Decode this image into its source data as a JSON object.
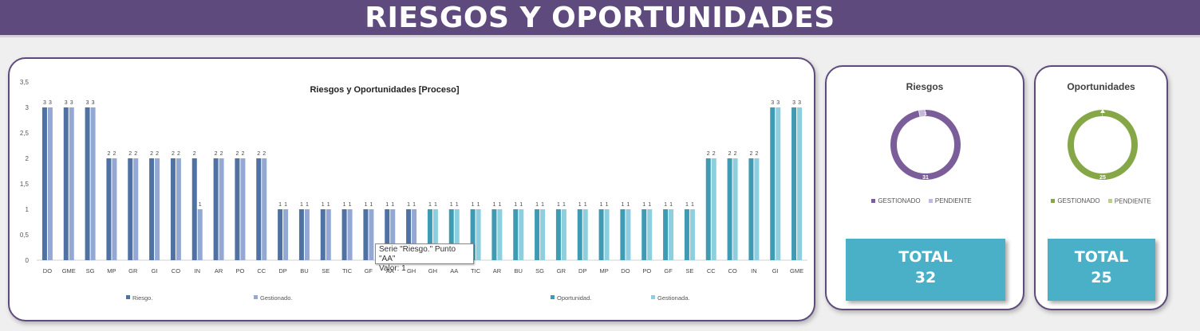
{
  "header": {
    "title": "RIESGOS Y OPORTUNIDADES"
  },
  "colors": {
    "riesgo": "#4f72a3",
    "gestionado": "#93a9d4",
    "oportunidad": "#3f9bb3",
    "gestionada": "#8ecfdf",
    "purple": "#7b5e99",
    "purple_light": "#c5b7dd",
    "green": "#86a748",
    "green_light": "#b8d08a"
  },
  "chart_data": [
    {
      "type": "bar",
      "title": "Riesgos y Oportunidades [Proceso]",
      "ylim": [
        0,
        3.5
      ],
      "yticks": [
        "0",
        "0,5",
        "1",
        "1,5",
        "2",
        "2,5",
        "3",
        "3,5"
      ],
      "categories": [
        "DO",
        "GME",
        "SG",
        "MP",
        "GR",
        "GI",
        "CO",
        "IN",
        "AR",
        "PO",
        "CC",
        "DP",
        "BU",
        "SE",
        "TIC",
        "GF",
        "AA",
        "GH",
        "GH",
        "AA",
        "TIC",
        "AR",
        "BU",
        "SG",
        "GR",
        "DP",
        "MP",
        "DO",
        "PO",
        "GF",
        "SE",
        "CC",
        "CO",
        "IN",
        "GI",
        "GME"
      ],
      "series": [
        {
          "name": "Riesgo.",
          "group": "riesgo",
          "values": [
            3,
            3,
            3,
            2,
            2,
            2,
            2,
            2,
            2,
            2,
            2,
            1,
            1,
            1,
            1,
            1,
            1,
            1,
            null,
            null,
            null,
            null,
            null,
            null,
            null,
            null,
            null,
            null,
            null,
            null,
            null,
            null,
            null,
            null,
            null,
            null
          ]
        },
        {
          "name": "Gestionado.",
          "group": "gestionado",
          "values": [
            3,
            3,
            3,
            2,
            2,
            2,
            2,
            1,
            2,
            2,
            2,
            1,
            1,
            1,
            1,
            1,
            1,
            1,
            null,
            null,
            null,
            null,
            null,
            null,
            null,
            null,
            null,
            null,
            null,
            null,
            null,
            null,
            null,
            null,
            null,
            null
          ]
        },
        {
          "name": "Oportunidad.",
          "group": "oportunidad",
          "values": [
            null,
            null,
            null,
            null,
            null,
            null,
            null,
            null,
            null,
            null,
            null,
            null,
            null,
            null,
            null,
            null,
            null,
            null,
            1,
            1,
            1,
            1,
            1,
            1,
            1,
            1,
            1,
            1,
            1,
            1,
            1,
            2,
            2,
            2,
            3,
            3
          ]
        },
        {
          "name": "Gestionada.",
          "group": "gestionada",
          "values": [
            null,
            null,
            null,
            null,
            null,
            null,
            null,
            null,
            null,
            null,
            null,
            null,
            null,
            null,
            null,
            null,
            null,
            null,
            1,
            1,
            1,
            1,
            1,
            1,
            1,
            1,
            1,
            1,
            1,
            1,
            1,
            2,
            2,
            2,
            3,
            3
          ]
        }
      ],
      "tooltip": {
        "line1": "Serie \"Riesgo.\" Punto \"AA\"",
        "line2": "Valor: 1"
      }
    },
    {
      "type": "pie",
      "title": "Riesgos",
      "slices": [
        {
          "label": "GESTIONADO",
          "value": 31
        },
        {
          "label": "PENDIENTE",
          "value": 1
        }
      ]
    },
    {
      "type": "pie",
      "title": "Oportunidades",
      "slices": [
        {
          "label": "GESTIONADO",
          "value": 25
        },
        {
          "label": "PENDIENTE",
          "value": 0
        }
      ]
    }
  ],
  "riesgos_panel": {
    "title": "Riesgos",
    "legend": [
      "GESTIONADO",
      "PENDIENTE"
    ],
    "gestionado_value": "31",
    "pendiente_value": "1",
    "total_label": "TOTAL",
    "total_value": "32"
  },
  "oport_panel": {
    "title": "Oportunidades",
    "legend": [
      "GESTIONADO",
      "PENDIENTE"
    ],
    "gestionado_value": "25",
    "total_label": "TOTAL",
    "total_value": "25"
  }
}
